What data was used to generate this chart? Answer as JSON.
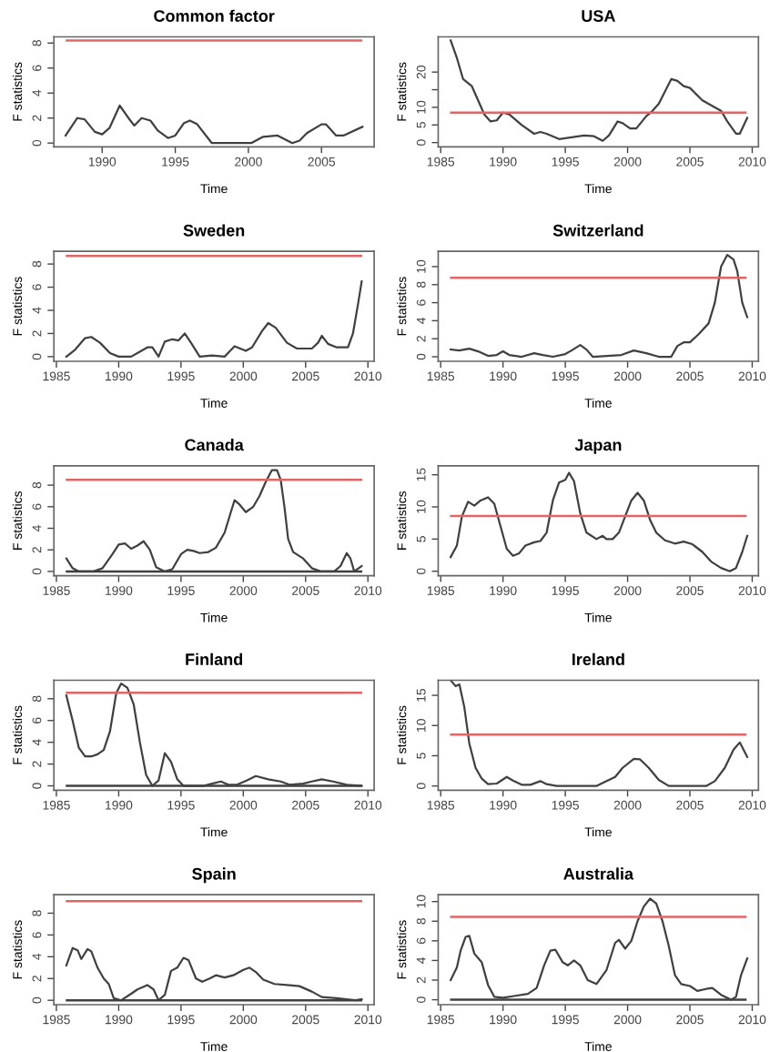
{
  "chart_data": [
    {
      "type": "line",
      "title": "Common factor",
      "xlabel": "Time",
      "ylabel": "F statistics",
      "xlim": [
        1986.7,
        2008.6
      ],
      "ylim": [
        -0.3,
        8.5
      ],
      "xticks": [
        1990,
        1995,
        2000,
        2005
      ],
      "yticks": [
        0,
        2,
        4,
        6,
        8
      ],
      "grid": false,
      "legend": false,
      "series": [
        {
          "color": "#404040",
          "x": [
            1987.5,
            1988.3,
            1988.8,
            1989.5,
            1990,
            1990.5,
            1991.2,
            1991.8,
            1992.2,
            1992.7,
            1993.3,
            1993.8,
            1994.5,
            1995,
            1995.6,
            1996,
            1996.5,
            1997.5,
            1999,
            2000.2,
            2001,
            2002,
            2003,
            2003.5,
            2004,
            2005,
            2005.3,
            2006,
            2006.5,
            2007.8
          ],
          "values": [
            0.6,
            2.0,
            1.9,
            0.9,
            0.7,
            1.2,
            3.0,
            2.0,
            1.4,
            2.0,
            1.8,
            1.0,
            0.4,
            0.6,
            1.6,
            1.8,
            1.5,
            0,
            0,
            0,
            0.5,
            0.6,
            0,
            0.2,
            0.8,
            1.5,
            1.5,
            0.6,
            0.6,
            1.3
          ]
        }
      ],
      "ref_lines": [
        {
          "axis": "y",
          "value": 8.2,
          "color": "#e06666"
        }
      ]
    },
    {
      "type": "line",
      "title": "USA",
      "xlabel": "Time",
      "ylabel": "F statistics",
      "xlim": [
        1984.8,
        2010.5
      ],
      "ylim": [
        -1.2,
        30
      ],
      "xticks": [
        1985,
        1990,
        1995,
        2000,
        2005,
        2010
      ],
      "yticks": [
        0,
        5,
        10,
        {
          "value": 15,
          "label": null
        },
        20
      ],
      "grid": false,
      "legend": false,
      "series": [
        {
          "color": "#404040",
          "x": [
            1985.8,
            1986.3,
            1986.8,
            1987.5,
            1988,
            1988.5,
            1989,
            1989.5,
            1990,
            1990.5,
            1991.5,
            1992.5,
            1993,
            1993.5,
            1994.5,
            1995.5,
            1996.5,
            1997.3,
            1998,
            1998.5,
            1999.2,
            1999.6,
            2000.2,
            2000.7,
            2001.5,
            2002,
            2002.5,
            2003.5,
            2004,
            2004.5,
            2005,
            2006,
            2007,
            2007.5,
            2008,
            2008.7,
            2009,
            2009.6
          ],
          "values": [
            29,
            24,
            18,
            16,
            12,
            8,
            6,
            6.3,
            8.5,
            8,
            5,
            2.5,
            3,
            2.5,
            1,
            1.5,
            2,
            1.8,
            0.5,
            2,
            6,
            5.5,
            4,
            4,
            7.5,
            9,
            11,
            18,
            17.5,
            16,
            15.5,
            12,
            10,
            9,
            6,
            2.5,
            2.5,
            7
          ]
        }
      ],
      "ref_lines": [
        {
          "axis": "y",
          "value": 8.5,
          "color": "#e06666"
        }
      ]
    },
    {
      "type": "line",
      "title": "Sweden",
      "xlabel": "Time",
      "ylabel": "F statistics",
      "xlim": [
        1984.8,
        2010.5
      ],
      "ylim": [
        -0.4,
        9.1
      ],
      "xticks": [
        1985,
        1990,
        1995,
        2000,
        2005,
        2010
      ],
      "yticks": [
        0,
        2,
        4,
        6,
        8
      ],
      "grid": false,
      "legend": false,
      "series": [
        {
          "color": "#404040",
          "x": [
            1985.8,
            1986.5,
            1987.3,
            1987.8,
            1988.5,
            1989.3,
            1990,
            1991,
            1991.5,
            1992.3,
            1992.7,
            1993.2,
            1993.7,
            1994.3,
            1994.8,
            1995.3,
            1995.8,
            1996.5,
            1997.5,
            1998.5,
            1999.3,
            2000.2,
            2000.7,
            2001.5,
            2002,
            2002.6,
            2003.5,
            2004.3,
            2005.5,
            2006,
            2006.3,
            2006.8,
            2007.5,
            2008.4,
            2008.8,
            2009.2,
            2009.5
          ],
          "values": [
            0,
            0.6,
            1.6,
            1.7,
            1.2,
            0.3,
            0,
            0,
            0.3,
            0.8,
            0.8,
            0,
            1.3,
            1.5,
            1.4,
            2.0,
            1.2,
            0,
            0.1,
            0,
            0.9,
            0.5,
            0.8,
            2.2,
            2.9,
            2.5,
            1.2,
            0.7,
            0.7,
            1.2,
            1.8,
            1.1,
            0.8,
            0.8,
            2.0,
            4.5,
            6.5
          ]
        }
      ],
      "ref_lines": [
        {
          "axis": "y",
          "value": 8.7,
          "color": "#e06666"
        }
      ]
    },
    {
      "type": "line",
      "title": "Switzerland",
      "xlabel": "Time",
      "ylabel": "F statistics",
      "xlim": [
        1984.8,
        2010.5
      ],
      "ylim": [
        -0.5,
        11.7
      ],
      "xticks": [
        1985,
        1990,
        1995,
        2000,
        2005,
        2010
      ],
      "yticks": [
        0,
        2,
        4,
        6,
        8,
        10
      ],
      "grid": false,
      "legend": false,
      "series": [
        {
          "color": "#404040",
          "x": [
            1985.8,
            1986.5,
            1987.3,
            1988,
            1988.8,
            1989.5,
            1990,
            1990.5,
            1991.5,
            1992.5,
            1993.2,
            1994,
            1995,
            1995.5,
            1996.2,
            1996.7,
            1997.2,
            1999.5,
            2000.5,
            2001.5,
            2002.5,
            2003.5,
            2004,
            2004.5,
            2005,
            2005.7,
            2006.5,
            2007,
            2007.5,
            2008,
            2008.5,
            2008.8,
            2009.2,
            2009.6
          ],
          "values": [
            0.8,
            0.7,
            0.9,
            0.6,
            0.1,
            0.2,
            0.6,
            0.2,
            0,
            0.4,
            0.2,
            0,
            0.3,
            0.7,
            1.3,
            0.8,
            0,
            0.2,
            0.7,
            0.4,
            0,
            0,
            1.2,
            1.6,
            1.6,
            2.5,
            3.7,
            6,
            10,
            11.3,
            10.8,
            9.5,
            6,
            4.4
          ]
        }
      ],
      "ref_lines": [
        {
          "axis": "y",
          "value": 8.75,
          "color": "#e06666"
        }
      ]
    },
    {
      "type": "line",
      "title": "Canada",
      "xlabel": "Time",
      "ylabel": "F statistics",
      "xlim": [
        1984.8,
        2010.5
      ],
      "ylim": [
        -0.4,
        9.8
      ],
      "xticks": [
        1985,
        1990,
        1995,
        2000,
        2005,
        2010
      ],
      "yticks": [
        0,
        2,
        4,
        6,
        8
      ],
      "grid": false,
      "legend": false,
      "series": [
        {
          "color": "#404040",
          "x": [
            1985.8,
            1986.3,
            1986.8,
            1988,
            1988.7,
            1989.5,
            1990,
            1990.5,
            1991,
            1991.5,
            1992,
            1992.5,
            1993,
            1993.7,
            1994.3,
            1995,
            1995.5,
            1996,
            1996.5,
            1997.2,
            1997.8,
            1998.5,
            1999,
            1999.3,
            1999.7,
            2000.2,
            2000.8,
            2001.3,
            2001.8,
            2002.3,
            2002.7,
            2003,
            2003.3,
            2003.6,
            2004,
            2004.8,
            2005.5,
            2006.2,
            2007.3,
            2007.8,
            2008.3,
            2008.6,
            2008.9,
            2009.5
          ],
          "values": [
            1.2,
            0.3,
            0,
            0,
            0.3,
            1.6,
            2.5,
            2.6,
            2.1,
            2.4,
            2.8,
            2.0,
            0.4,
            0,
            0.2,
            1.6,
            2.0,
            1.9,
            1.7,
            1.8,
            2.2,
            3.6,
            5.5,
            6.6,
            6.2,
            5.5,
            6.0,
            7.0,
            8.3,
            9.4,
            9.4,
            8.5,
            6,
            3,
            1.8,
            1.2,
            0.3,
            0,
            0,
            0.5,
            1.7,
            1.2,
            0,
            0.5
          ]
        }
      ],
      "ref_lines": [
        {
          "axis": "y",
          "value": 8.5,
          "color": "#e06666"
        },
        {
          "axis": "y",
          "value": 0,
          "color": "#404040"
        }
      ]
    },
    {
      "type": "line",
      "title": "Japan",
      "xlabel": "Time",
      "ylabel": "F statistics",
      "xlim": [
        1984.8,
        2010.5
      ],
      "ylim": [
        -0.7,
        16.4
      ],
      "xticks": [
        1985,
        1990,
        1995,
        2000,
        2005,
        2010
      ],
      "yticks": [
        0,
        5,
        10,
        15
      ],
      "grid": false,
      "legend": false,
      "series": [
        {
          "color": "#404040",
          "x": [
            1985.8,
            1986.3,
            1986.7,
            1987.2,
            1987.7,
            1988.2,
            1988.8,
            1989.3,
            1989.8,
            1990.3,
            1990.8,
            1991.3,
            1991.8,
            1992.5,
            1993,
            1993.5,
            1994,
            1994.5,
            1995,
            1995.3,
            1995.7,
            1996.2,
            1996.7,
            1997.5,
            1998,
            1998.3,
            1998.8,
            1999.3,
            1999.8,
            2000.3,
            2000.8,
            2001.3,
            2001.8,
            2002.3,
            2003,
            2003.8,
            2004.5,
            2005.2,
            2006,
            2006.7,
            2007.5,
            2008.2,
            2008.7,
            2009.2,
            2009.6
          ],
          "values": [
            2.2,
            4,
            8.5,
            10.8,
            10.2,
            11,
            11.5,
            10.5,
            7,
            3.5,
            2.4,
            2.8,
            4,
            4.5,
            4.7,
            6,
            11,
            13.8,
            14.2,
            15.3,
            14,
            9,
            6,
            5,
            5.5,
            5,
            5,
            6,
            8.5,
            11,
            12.2,
            11,
            8,
            6,
            4.8,
            4.3,
            4.6,
            4.2,
            3,
            1.5,
            0.5,
            0,
            0.5,
            3,
            5.5
          ]
        }
      ],
      "ref_lines": [
        {
          "axis": "y",
          "value": 8.6,
          "color": "#e06666"
        }
      ]
    },
    {
      "type": "line",
      "title": "Finland",
      "xlabel": "Time",
      "ylabel": "F statistics",
      "xlim": [
        1984.8,
        2010.5
      ],
      "ylim": [
        -0.4,
        9.7
      ],
      "xticks": [
        1985,
        1990,
        1995,
        2000,
        2005,
        2010
      ],
      "yticks": [
        0,
        2,
        4,
        6,
        8
      ],
      "grid": false,
      "legend": false,
      "series": [
        {
          "color": "#404040",
          "x": [
            1985.8,
            1986.3,
            1986.8,
            1987.3,
            1987.8,
            1988.3,
            1988.8,
            1989.3,
            1989.8,
            1990.2,
            1990.7,
            1991.2,
            1991.7,
            1992.2,
            1992.7,
            1993.2,
            1993.7,
            1994.2,
            1994.7,
            1995.2,
            1996.8,
            1997.5,
            1998.2,
            1998.8,
            1999.5,
            2000.3,
            2001,
            2002,
            2003,
            2003.7,
            2004.8,
            2005.5,
            2006.3,
            2007.2,
            2008.3,
            2009.5
          ],
          "values": [
            8.3,
            6,
            3.5,
            2.7,
            2.7,
            2.9,
            3.3,
            5,
            8.5,
            9.4,
            9.0,
            7.5,
            4,
            1,
            0,
            0.5,
            3.0,
            2.2,
            0.6,
            0,
            0,
            0.2,
            0.4,
            0.1,
            0.1,
            0.5,
            0.9,
            0.6,
            0.4,
            0.1,
            0.2,
            0.4,
            0.6,
            0.4,
            0.1,
            0
          ]
        }
      ],
      "ref_lines": [
        {
          "axis": "y",
          "value": 8.55,
          "color": "#e06666"
        },
        {
          "axis": "y",
          "value": 0,
          "color": "#404040"
        }
      ]
    },
    {
      "type": "line",
      "title": "Ireland",
      "xlabel": "Time",
      "ylabel": "F statistics",
      "xlim": [
        1984.8,
        2010.5
      ],
      "ylim": [
        -0.7,
        17.5
      ],
      "xticks": [
        1985,
        1990,
        1995,
        2000,
        2005,
        2010
      ],
      "yticks": [
        0,
        5,
        10,
        15
      ],
      "grid": false,
      "legend": false,
      "series": [
        {
          "color": "#404040",
          "x": [
            1985.8,
            1986.2,
            1986.5,
            1986.9,
            1987.3,
            1987.8,
            1988.3,
            1988.8,
            1989.5,
            1990.3,
            1990.8,
            1991.5,
            1992.2,
            1993,
            1993.5,
            1994.3,
            1997.5,
            1998.2,
            1999,
            1999.6,
            2000.5,
            2001,
            2001.7,
            2002.5,
            2003.3,
            2006.3,
            2007,
            2007.8,
            2008.5,
            2009,
            2009.6
          ],
          "values": [
            17.5,
            16.5,
            16.8,
            13,
            7,
            3,
            1.2,
            0.3,
            0.4,
            1.5,
            0.9,
            0.2,
            0.2,
            0.8,
            0.3,
            0,
            0,
            0.7,
            1.5,
            3,
            4.5,
            4.4,
            3,
            1,
            0,
            0,
            0.8,
            3,
            6,
            7.2,
            4.8
          ]
        }
      ],
      "ref_lines": [
        {
          "axis": "y",
          "value": 8.5,
          "color": "#e06666"
        }
      ]
    },
    {
      "type": "line",
      "title": "Spain",
      "xlabel": "Time",
      "ylabel": "F statistics",
      "xlim": [
        1984.8,
        2010.5
      ],
      "ylim": [
        -0.4,
        9.7
      ],
      "xticks": [
        1985,
        1990,
        1995,
        2000,
        2005,
        2010
      ],
      "yticks": [
        0,
        2,
        4,
        6,
        8
      ],
      "grid": false,
      "legend": false,
      "series": [
        {
          "color": "#404040",
          "x": [
            1985.8,
            1986.3,
            1986.7,
            1987,
            1987.5,
            1987.8,
            1988.3,
            1988.8,
            1989.2,
            1989.6,
            1990.2,
            1991,
            1991.5,
            1992.3,
            1992.8,
            1993.2,
            1993.7,
            1994.2,
            1994.7,
            1995.2,
            1995.6,
            1996.2,
            1996.7,
            1997.3,
            1997.8,
            1998.5,
            1999.2,
            2000,
            2000.5,
            2001,
            2001.6,
            2002.5,
            2003.5,
            2004.5,
            2005.5,
            2006.3,
            2007.5,
            2008.3,
            2009,
            2009.5
          ],
          "values": [
            3.2,
            4.8,
            4.6,
            3.8,
            4.7,
            4.5,
            3,
            2.0,
            1.5,
            0.2,
            0,
            0.6,
            1.0,
            1.4,
            1,
            0,
            0.5,
            2.7,
            3,
            3.9,
            3.7,
            2,
            1.7,
            2.0,
            2.3,
            2.1,
            2.3,
            2.8,
            3.0,
            2.6,
            1.9,
            1.5,
            1.4,
            1.3,
            0.8,
            0.3,
            0.2,
            0.1,
            0,
            0.1
          ]
        }
      ],
      "ref_lines": [
        {
          "axis": "y",
          "value": 9.1,
          "color": "#e06666"
        },
        {
          "axis": "y",
          "value": 0,
          "color": "#404040"
        }
      ]
    },
    {
      "type": "line",
      "title": "Australia",
      "xlabel": "Time",
      "ylabel": "F statistics",
      "xlim": [
        1984.8,
        2010.5
      ],
      "ylim": [
        -0.5,
        10.7
      ],
      "xticks": [
        1985,
        1990,
        1995,
        2000,
        2005,
        2010
      ],
      "yticks": [
        0,
        2,
        4,
        6,
        8,
        10
      ],
      "grid": false,
      "legend": false,
      "series": [
        {
          "color": "#404040",
          "x": [
            1985.8,
            1986.3,
            1986.6,
            1987,
            1987.3,
            1987.7,
            1988.3,
            1988.8,
            1989.3,
            1990,
            1991,
            1992,
            1992.7,
            1993.3,
            1993.8,
            1994.2,
            1994.8,
            1995.2,
            1995.7,
            1996.2,
            1996.8,
            1997.5,
            1998.3,
            1999,
            1999.3,
            1999.8,
            2000.3,
            2000.8,
            2001.3,
            2001.8,
            2002.3,
            2002.8,
            2003.3,
            2003.8,
            2004.3,
            2005,
            2005.6,
            2006.3,
            2006.8,
            2007.5,
            2008.3,
            2008.7,
            2009.1,
            2009.6
          ],
          "values": [
            2,
            3.3,
            5,
            6.4,
            6.5,
            4.7,
            3.8,
            1.5,
            0.3,
            0.2,
            0.4,
            0.6,
            1.2,
            3.5,
            5.0,
            5.1,
            3.8,
            3.5,
            4.0,
            3.5,
            2,
            1.6,
            3,
            5.8,
            6.1,
            5.2,
            6,
            8,
            9.5,
            10.3,
            9.8,
            8,
            5.5,
            2.5,
            1.6,
            1.4,
            0.9,
            1.1,
            1.2,
            0.5,
            0,
            0.3,
            2.5,
            4.2
          ]
        }
      ],
      "ref_lines": [
        {
          "axis": "y",
          "value": 8.45,
          "color": "#e06666"
        },
        {
          "axis": "y",
          "value": 0,
          "color": "#404040"
        }
      ]
    }
  ]
}
